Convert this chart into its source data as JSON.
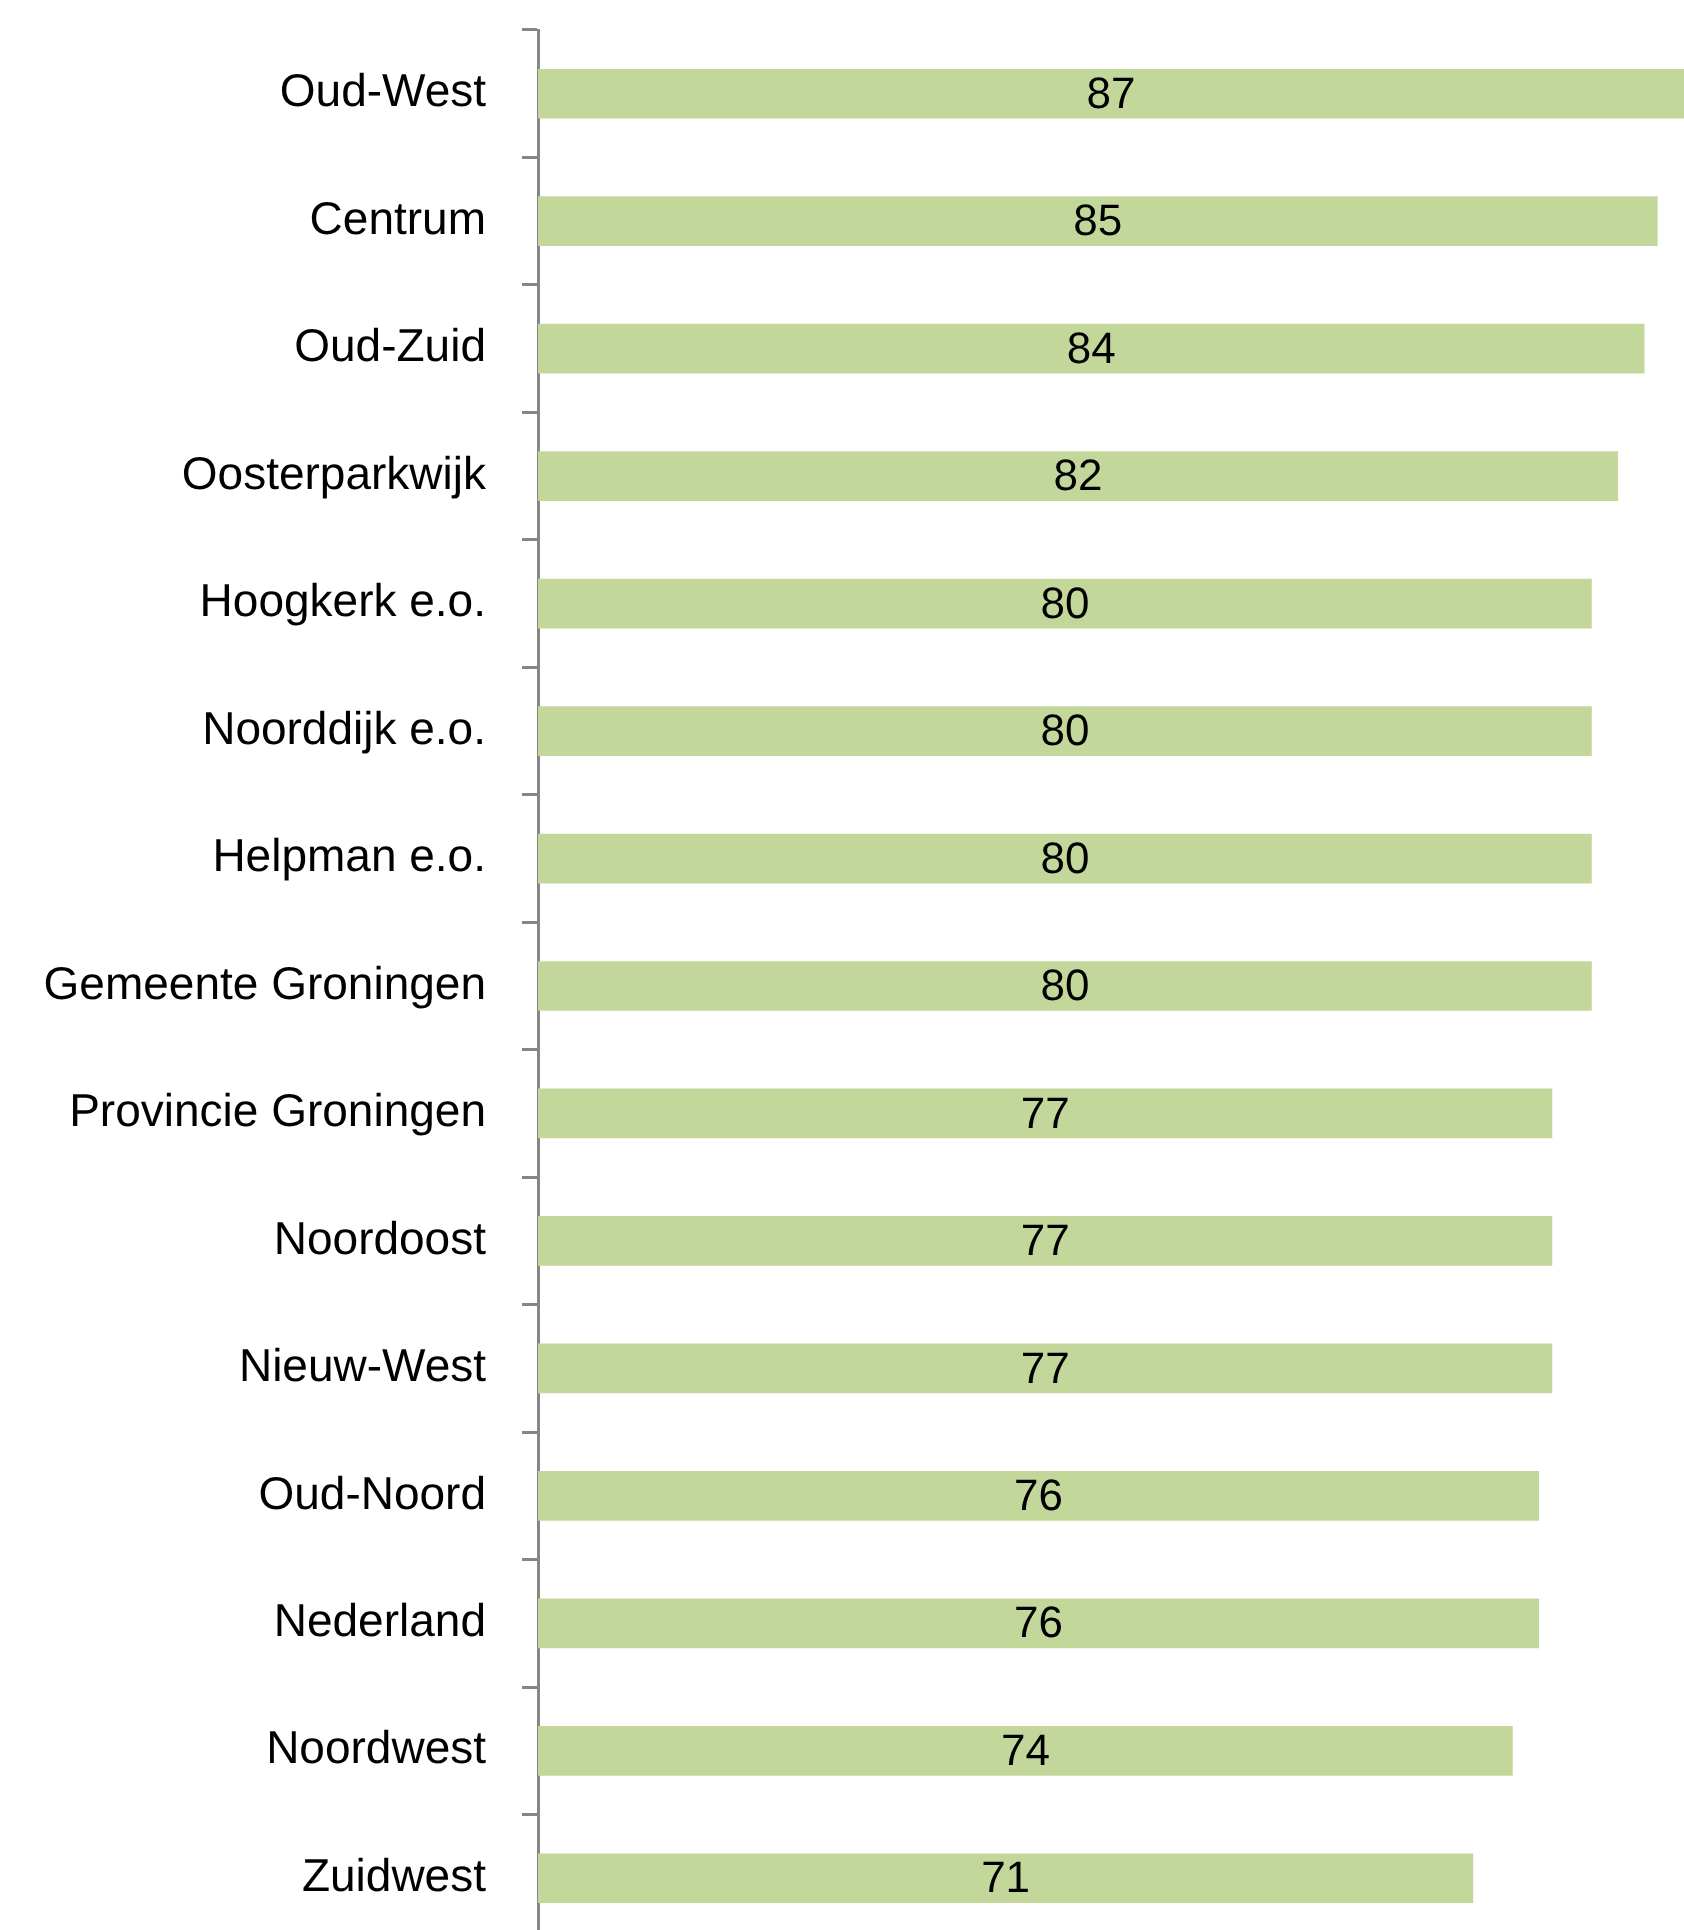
{
  "chart_data": {
    "type": "bar",
    "orientation": "horizontal",
    "categories": [
      "Oud-West",
      "Centrum",
      "Oud-Zuid",
      "Oosterparkwijk",
      "Hoogkerk e.o.",
      "Noorddijk e.o.",
      "Helpman e.o.",
      "Gemeente Groningen",
      "Provincie Groningen",
      "Noordoost",
      "Nieuw-West",
      "Oud-Noord",
      "Nederland",
      "Noordwest",
      "Zuidwest"
    ],
    "values": [
      87,
      85,
      84,
      82,
      80,
      80,
      80,
      80,
      77,
      77,
      77,
      76,
      76,
      74,
      71
    ],
    "color": "#c4d79b",
    "xlim": [
      0,
      87
    ],
    "tick_labels": "y",
    "data_labels": true
  }
}
